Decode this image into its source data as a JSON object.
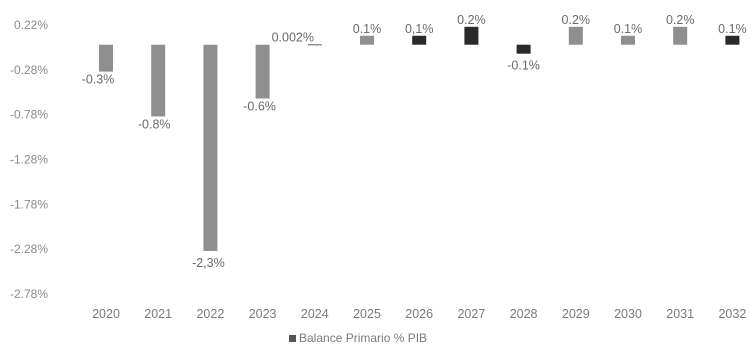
{
  "chart_data": {
    "type": "bar",
    "categories": [
      "2020",
      "2021",
      "2022",
      "2023",
      "2024",
      "2025",
      "2026",
      "2027",
      "2028",
      "2029",
      "2030",
      "2031",
      "2032"
    ],
    "series": [
      {
        "name": "Balance Primario % PIB",
        "values": [
          -0.3,
          -0.8,
          -2.3,
          -0.6,
          0.002,
          0.1,
          0.1,
          0.2,
          -0.1,
          0.2,
          0.1,
          0.2,
          0.1
        ],
        "labels": [
          "-0.3%",
          "-0.8%",
          "-2,3%",
          "-0.6%",
          "0.002%",
          "0.1%",
          "0,1%",
          "0.2%",
          "-0.1%",
          "0.2%",
          "0.1%",
          "0.2%",
          "0.1%"
        ]
      }
    ],
    "yticks": [
      "0.22%",
      "-0.28%",
      "-0.78%",
      "-1.28%",
      "-1.78%",
      "-2.28%",
      "-2.78%"
    ],
    "ytick_values": [
      0.22,
      -0.28,
      -0.78,
      -1.28,
      -1.78,
      -2.28,
      -2.78
    ],
    "ylim": [
      -2.78,
      0.22
    ],
    "grid": false,
    "legend_position": "bottom-center",
    "colors": {
      "bar": "#8f8f8f",
      "bar_dark": "#2a2a2a",
      "text": "#7a7a7a"
    }
  }
}
